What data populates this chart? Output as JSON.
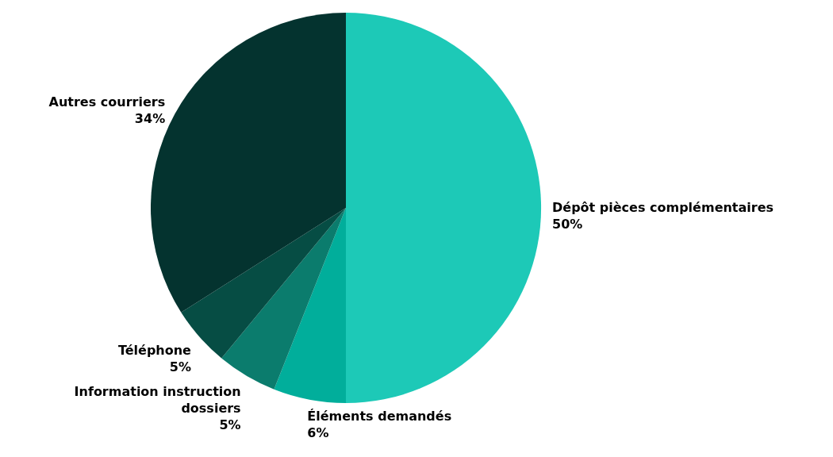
{
  "chart_data": {
    "type": "pie",
    "categories": [
      "Dépôt pièces complémentaires",
      "Éléments demandés",
      "Information instruction dossiers",
      "Téléphone",
      "Autres courriers"
    ],
    "values": [
      50,
      6,
      5,
      5,
      34
    ],
    "value_labels": [
      "50%",
      "6%",
      "5%",
      "5%",
      "34%"
    ],
    "colors": [
      "#1dc9b7",
      "#01ae9b",
      "#0b7c6d",
      "#064d44",
      "#04332f"
    ]
  }
}
